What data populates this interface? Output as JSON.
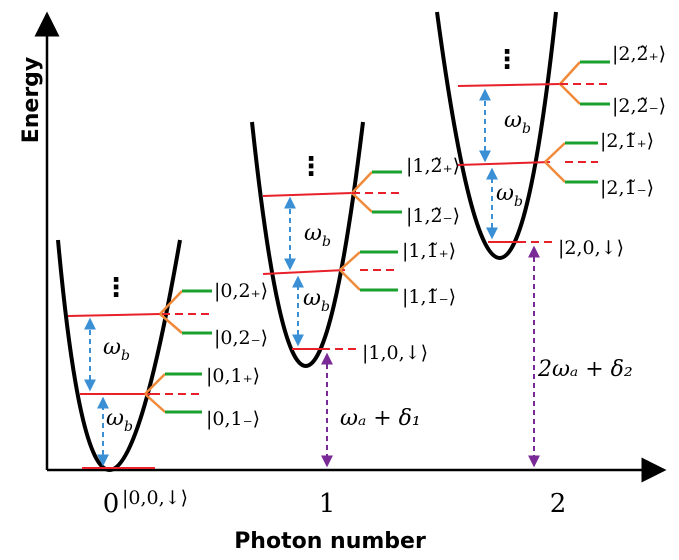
{
  "axes": {
    "x_title": "Photon number",
    "y_title": "Energy",
    "ticks": [
      "0",
      "1",
      "2"
    ]
  },
  "colors": {
    "well": "#000000",
    "level": "#e8202a",
    "split_line": "#f08a3a",
    "state": "#1aa02e",
    "transition_b": "#3b8fd4",
    "transition_a": "#7a2a96"
  },
  "labels": {
    "omega_b": "ω",
    "omega_b_sub": "b",
    "dots": "⋮",
    "n0_ground": "|0,0,↓⟩",
    "n0_1p": "|0,1₊⟩",
    "n0_1m": "|0,1₋⟩",
    "n0_2p": "|0,2₊⟩",
    "n0_2m": "|0,2₋⟩",
    "n1_ground": "|1,0,↓⟩",
    "n1_1p": "|1,1̃₊⟩",
    "n1_1m": "|1,1̃₋⟩",
    "n1_2p": "|1,2̃₊⟩",
    "n1_2m": "|1,2̃₋⟩",
    "n2_ground": "|2,0,↓⟩",
    "n2_1p": "|2,1̃₊⟩",
    "n2_1m": "|2,1̃₋⟩",
    "n2_2p": "|2,2̃₊⟩",
    "n2_2m": "|2,2̃₋⟩",
    "gap_1": "ωₐ + δ₁",
    "gap_2": "2ωₐ + δ₂"
  }
}
